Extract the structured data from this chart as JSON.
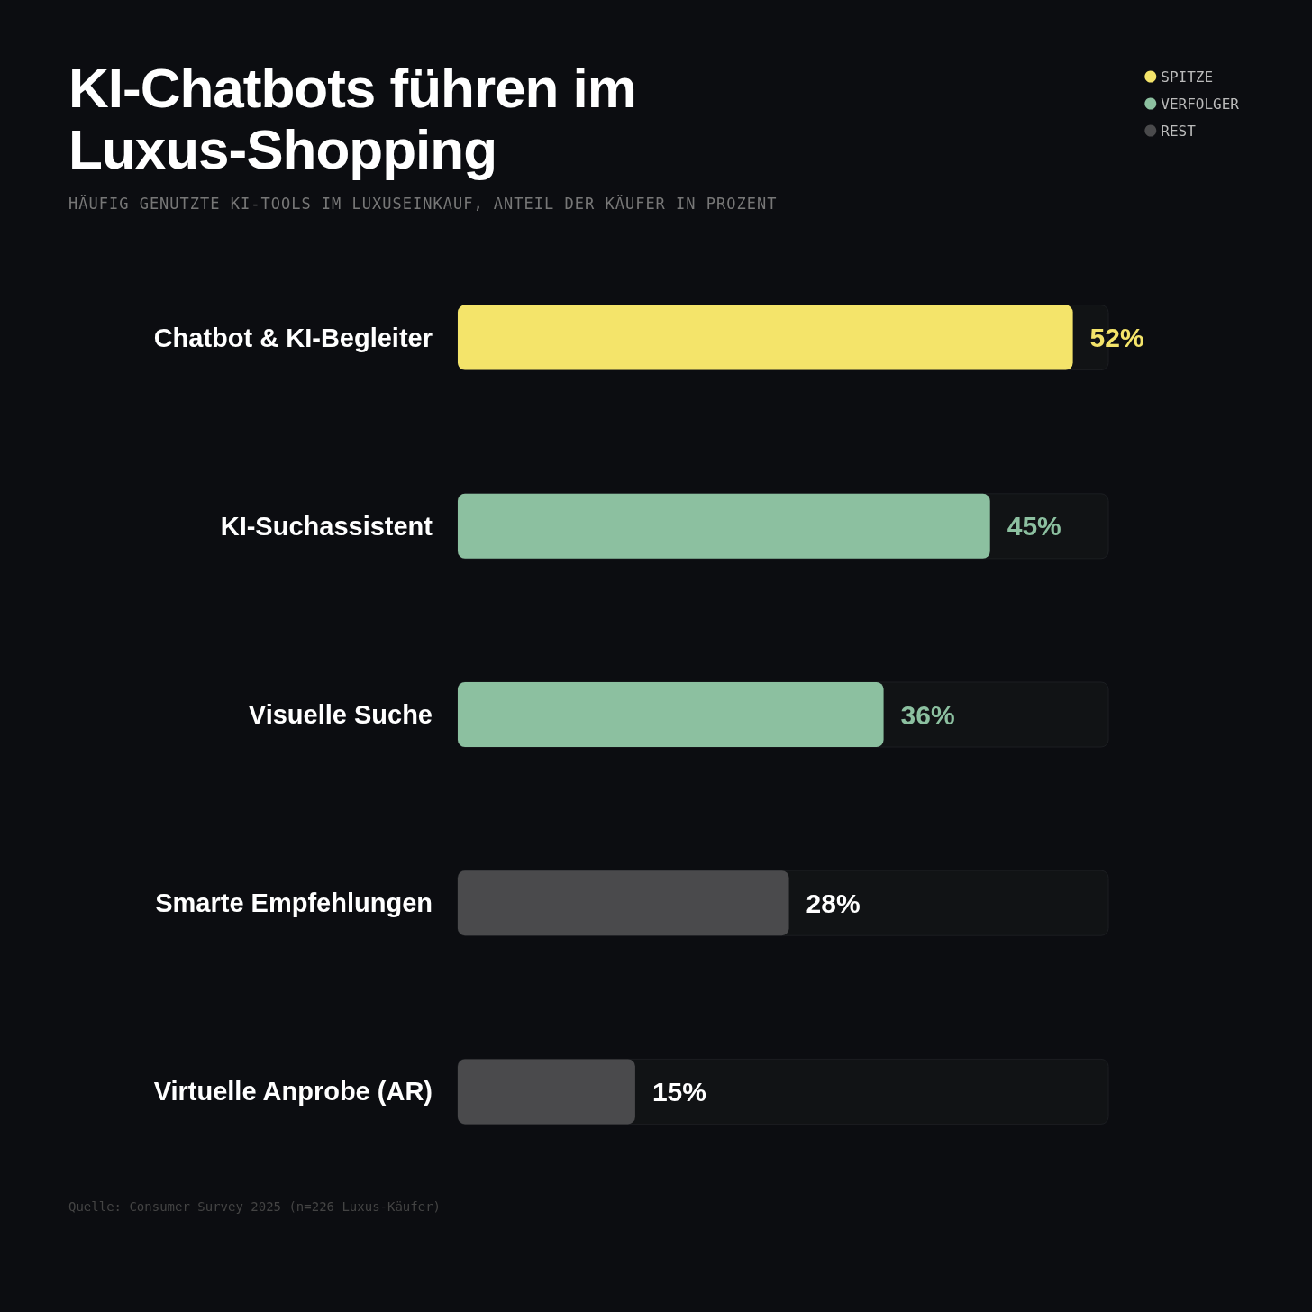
{
  "chart_data": {
    "type": "bar",
    "orientation": "horizontal",
    "stacked": true,
    "title": "KI-Chatbots führen im Luxus-Shopping",
    "subtitle": "HÄUFIG GENUTZTE KI-TOOLS IM LUXUSEINKAUF, ANTEIL DER KÄUFER IN PROZENT",
    "categories": [
      "Chatbot & KI-Begleiter",
      "KI-Suchassistent",
      "Visuelle Suche",
      "Smarte Empfehlungen",
      "Virtuelle Anprobe (AR)"
    ],
    "series": [
      {
        "name": "SPITZE",
        "color": "#f4e46a",
        "values": [
          52,
          null,
          null,
          null,
          null
        ],
        "value_labels": [
          "52%",
          null,
          null,
          null,
          null
        ]
      },
      {
        "name": "VERFOLGER",
        "color": "#8cc0a0",
        "values": [
          null,
          45,
          36,
          null,
          null
        ],
        "value_labels": [
          null,
          "45%",
          "36%",
          null,
          null
        ]
      },
      {
        "name": "REST",
        "color": "#4a4a4c",
        "values": [
          null,
          null,
          null,
          28,
          15
        ],
        "value_labels": [
          null,
          null,
          null,
          "28%",
          "15%"
        ]
      }
    ],
    "xlim": [
      0,
      55
    ],
    "legend": "top right",
    "tick_labels": "y",
    "annotations": [
      "Quelle: Consumer Survey 2025 (n=226 Luxus-Käufer)"
    ]
  }
}
